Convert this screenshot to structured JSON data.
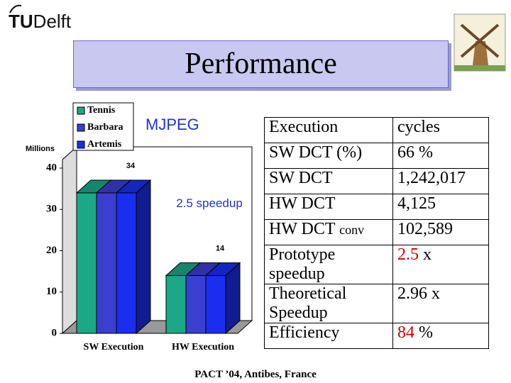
{
  "header": {
    "logo": [
      "TU",
      "Delft"
    ]
  },
  "title": "Performance",
  "chart_data": {
    "type": "bar3d",
    "y_label": "Millions",
    "categories": [
      "SW Execution",
      "HW Execution"
    ],
    "series": [
      {
        "name": "Tennis",
        "color": "#1aa886",
        "values": [
          34,
          14
        ]
      },
      {
        "name": "Barbara",
        "color": "#3a3fd0",
        "values": [
          34,
          14
        ]
      },
      {
        "name": "Artemis",
        "color": "#1a2ef0",
        "values": [
          34,
          14
        ]
      }
    ],
    "ylim": [
      0,
      40
    ],
    "yticks": [
      0,
      10,
      20,
      30,
      40
    ],
    "annotations": [
      "MJPEG",
      "2.5 speedup"
    ]
  },
  "table": {
    "rows": [
      [
        [
          {
            "text": "Execution"
          }
        ],
        [
          {
            "text": "cycles"
          }
        ]
      ],
      [
        [
          {
            "text": "SW DCT (%)"
          }
        ],
        [
          {
            "text": "66 %"
          }
        ]
      ],
      [
        [
          {
            "text": "SW DCT"
          }
        ],
        [
          {
            "text": "1,242,017"
          }
        ]
      ],
      [
        [
          {
            "text": "HW DCT"
          }
        ],
        [
          {
            "text": "4,125"
          }
        ]
      ],
      [
        [
          {
            "text": "HW DCT "
          },
          {
            "text": "conv",
            "small": true
          }
        ],
        [
          {
            "text": "102,589"
          }
        ]
      ],
      [
        [
          {
            "text": "Prototype speedup"
          }
        ],
        [
          {
            "text": "2.5",
            "color": "#cc0000"
          },
          {
            "text": " x"
          }
        ]
      ],
      [
        [
          {
            "text": "Theoretical Speedup"
          }
        ],
        [
          {
            "text": "2.96 x"
          }
        ]
      ],
      [
        [
          {
            "text": "Efficiency"
          }
        ],
        [
          {
            "text": "84",
            "color": "#cc0000"
          },
          {
            "text": " %"
          }
        ]
      ]
    ]
  },
  "footer": "PACT ’04, Antibes, France"
}
